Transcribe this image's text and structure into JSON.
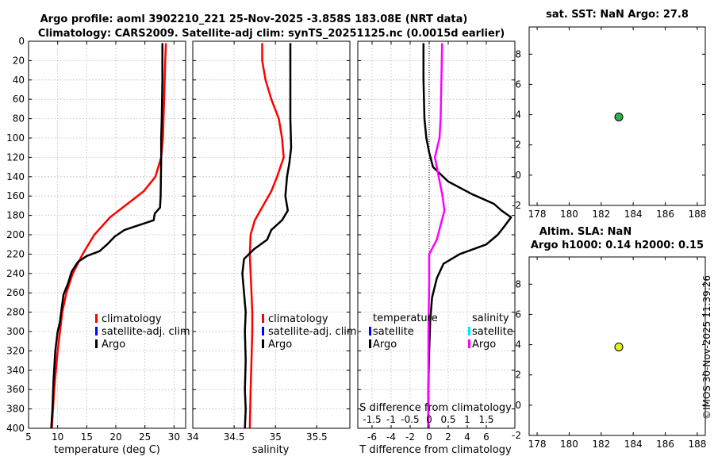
{
  "titles": {
    "line1": "Argo profile: aoml 3902210_221 25-Nov-2025 -3.858S 183.08E (NRT data)",
    "line2": "Climatology: CARS2009. Satellite-adj clim: synTS_20251125.nc (0.0015d earlier)"
  },
  "stamp": "©IMOS 30-Nov-2025 11:39:26",
  "colors": {
    "climatology": "#ff0000",
    "satellite_adj": "#0000ff",
    "argo": "#000000",
    "s_diff": "#ff00ff",
    "s_sat": "#00e5ff",
    "sst_marker": "#2db34a",
    "sla_marker": "#e6f01e"
  },
  "depth_ticks": [
    0,
    20,
    40,
    60,
    80,
    100,
    120,
    140,
    160,
    180,
    200,
    220,
    240,
    260,
    280,
    300,
    320,
    340,
    360,
    380,
    400
  ],
  "legend_profiles": [
    "climatology",
    "satellite-adj. clim",
    "Argo"
  ],
  "legend_diff": {
    "temperature_head": "temperature",
    "salinity_head": "salinity",
    "items": [
      "satellite",
      "Argo"
    ]
  },
  "chart_data": [
    {
      "id": "temperature",
      "type": "line",
      "xlabel": "temperature (deg C)",
      "ylabel": "depth",
      "xlim": [
        5,
        32
      ],
      "ylim": [
        0,
        400
      ],
      "xticks": [
        5,
        10,
        15,
        20,
        25,
        30
      ],
      "series": [
        {
          "name": "climatology",
          "color_key": "climatology",
          "points": [
            [
              28.6,
              2
            ],
            [
              28.5,
              20
            ],
            [
              28.4,
              40
            ],
            [
              28.3,
              60
            ],
            [
              28.2,
              80
            ],
            [
              28.1,
              100
            ],
            [
              27.8,
              120
            ],
            [
              26.8,
              140
            ],
            [
              24.8,
              155
            ],
            [
              22.0,
              168
            ],
            [
              19.0,
              182
            ],
            [
              16.3,
              200
            ],
            [
              14.3,
              220
            ],
            [
              12.6,
              240
            ],
            [
              11.5,
              260
            ],
            [
              10.8,
              280
            ],
            [
              10.4,
              300
            ],
            [
              10.0,
              320
            ],
            [
              9.7,
              340
            ],
            [
              9.4,
              360
            ],
            [
              9.2,
              380
            ],
            [
              9.0,
              400
            ]
          ]
        },
        {
          "name": "Argo",
          "color_key": "argo",
          "points": [
            [
              28.0,
              2
            ],
            [
              28.0,
              40
            ],
            [
              27.9,
              80
            ],
            [
              27.8,
              100
            ],
            [
              27.8,
              120
            ],
            [
              27.7,
              160
            ],
            [
              27.6,
              172
            ],
            [
              26.7,
              178
            ],
            [
              26.5,
              185
            ],
            [
              24.0,
              190
            ],
            [
              21.5,
              195
            ],
            [
              19.8,
              202
            ],
            [
              18.5,
              210
            ],
            [
              17.2,
              217
            ],
            [
              15.0,
              222
            ],
            [
              13.5,
              228
            ],
            [
              12.4,
              238
            ],
            [
              11.8,
              250
            ],
            [
              11.0,
              262
            ],
            [
              10.6,
              280
            ],
            [
              10.4,
              290
            ],
            [
              10.0,
              300
            ],
            [
              9.6,
              320
            ],
            [
              9.3,
              350
            ],
            [
              9.1,
              380
            ],
            [
              8.9,
              400
            ]
          ]
        }
      ]
    },
    {
      "id": "salinity",
      "type": "line",
      "xlabel": "salinity",
      "ylabel": "depth",
      "xlim": [
        34.0,
        35.9
      ],
      "ylim": [
        0,
        400
      ],
      "xticks": [
        34,
        34.5,
        35,
        35.5
      ],
      "series": [
        {
          "name": "climatology",
          "color_key": "climatology",
          "points": [
            [
              34.84,
              2
            ],
            [
              34.84,
              20
            ],
            [
              34.88,
              40
            ],
            [
              34.95,
              60
            ],
            [
              35.04,
              80
            ],
            [
              35.08,
              100
            ],
            [
              35.1,
              120
            ],
            [
              35.02,
              140
            ],
            [
              34.95,
              155
            ],
            [
              34.85,
              170
            ],
            [
              34.75,
              185
            ],
            [
              34.7,
              200
            ],
            [
              34.69,
              220
            ],
            [
              34.7,
              240
            ],
            [
              34.71,
              260
            ],
            [
              34.72,
              280
            ],
            [
              34.72,
              300
            ],
            [
              34.71,
              330
            ],
            [
              34.7,
              360
            ],
            [
              34.69,
              400
            ]
          ]
        },
        {
          "name": "Argo",
          "color_key": "argo",
          "points": [
            [
              35.18,
              2
            ],
            [
              35.18,
              40
            ],
            [
              35.18,
              80
            ],
            [
              35.19,
              110
            ],
            [
              35.17,
              125
            ],
            [
              35.14,
              140
            ],
            [
              35.12,
              160
            ],
            [
              35.15,
              175
            ],
            [
              35.08,
              185
            ],
            [
              34.95,
              195
            ],
            [
              34.9,
              205
            ],
            [
              34.74,
              215
            ],
            [
              34.62,
              225
            ],
            [
              34.6,
              240
            ],
            [
              34.62,
              260
            ],
            [
              34.64,
              280
            ],
            [
              34.63,
              300
            ],
            [
              34.64,
              330
            ],
            [
              34.63,
              360
            ],
            [
              34.64,
              380
            ],
            [
              34.63,
              400
            ]
          ]
        }
      ]
    },
    {
      "id": "differences",
      "type": "line",
      "xlabel": "T difference from climatology",
      "x2label": "S difference from climatology",
      "xlim": [
        -7.5,
        9.0
      ],
      "x2lim": [
        -1.875,
        2.25
      ],
      "ylim": [
        0,
        400
      ],
      "xticks": [
        -6,
        -4,
        -2,
        0,
        2,
        4,
        6
      ],
      "x2ticks": [
        -1.5,
        -1,
        -0.5,
        0,
        0.5,
        1,
        1.5
      ],
      "series": [
        {
          "name": "temperature Argo",
          "color_key": "argo",
          "axis": "T",
          "points": [
            [
              -0.6,
              2
            ],
            [
              -0.6,
              40
            ],
            [
              -0.5,
              80
            ],
            [
              -0.3,
              100
            ],
            [
              0.0,
              115
            ],
            [
              0.4,
              130
            ],
            [
              2.0,
              145
            ],
            [
              4.5,
              158
            ],
            [
              6.8,
              168
            ],
            [
              7.6,
              175
            ],
            [
              8.6,
              182
            ],
            [
              8.0,
              190
            ],
            [
              7.2,
              200
            ],
            [
              6.0,
              210
            ],
            [
              3.2,
              220
            ],
            [
              1.5,
              230
            ],
            [
              0.8,
              245
            ],
            [
              0.3,
              265
            ],
            [
              0.1,
              290
            ],
            [
              0.0,
              320
            ],
            [
              -0.1,
              360
            ],
            [
              -0.1,
              400
            ]
          ]
        },
        {
          "name": "salinity Argo",
          "color_key": "s_diff",
          "axis": "S",
          "points": [
            [
              0.34,
              2
            ],
            [
              0.32,
              40
            ],
            [
              0.3,
              80
            ],
            [
              0.27,
              100
            ],
            [
              0.15,
              120
            ],
            [
              0.25,
              140
            ],
            [
              0.35,
              160
            ],
            [
              0.4,
              175
            ],
            [
              0.3,
              190
            ],
            [
              0.2,
              205
            ],
            [
              0.0,
              220
            ],
            [
              0.0,
              250
            ],
            [
              -0.02,
              300
            ],
            [
              -0.02,
              350
            ],
            [
              -0.03,
              400
            ]
          ]
        }
      ]
    },
    {
      "id": "sst",
      "type": "scatter",
      "title": "sat. SST: NaN Argo: 27.8",
      "xlim": [
        177.5,
        188.5
      ],
      "ylim": [
        -2,
        9.8
      ],
      "xticks": [
        178,
        180,
        182,
        184,
        186,
        188
      ],
      "yticks": [
        -2,
        0,
        2,
        4,
        6,
        8
      ],
      "points": [
        [
          183.1,
          3.85
        ]
      ],
      "color_key": "sst_marker"
    },
    {
      "id": "sla",
      "type": "scatter",
      "title1": "Altim. SLA: NaN",
      "title2": "Argo h1000: 0.14 h2000: 0.15",
      "xlim": [
        177.5,
        188.5
      ],
      "ylim": [
        -2,
        9.8
      ],
      "xticks": [
        178,
        180,
        182,
        184,
        186,
        188
      ],
      "yticks": [
        -2,
        0,
        2,
        4,
        6,
        8
      ],
      "points": [
        [
          183.1,
          3.85
        ]
      ],
      "color_key": "sla_marker"
    }
  ]
}
